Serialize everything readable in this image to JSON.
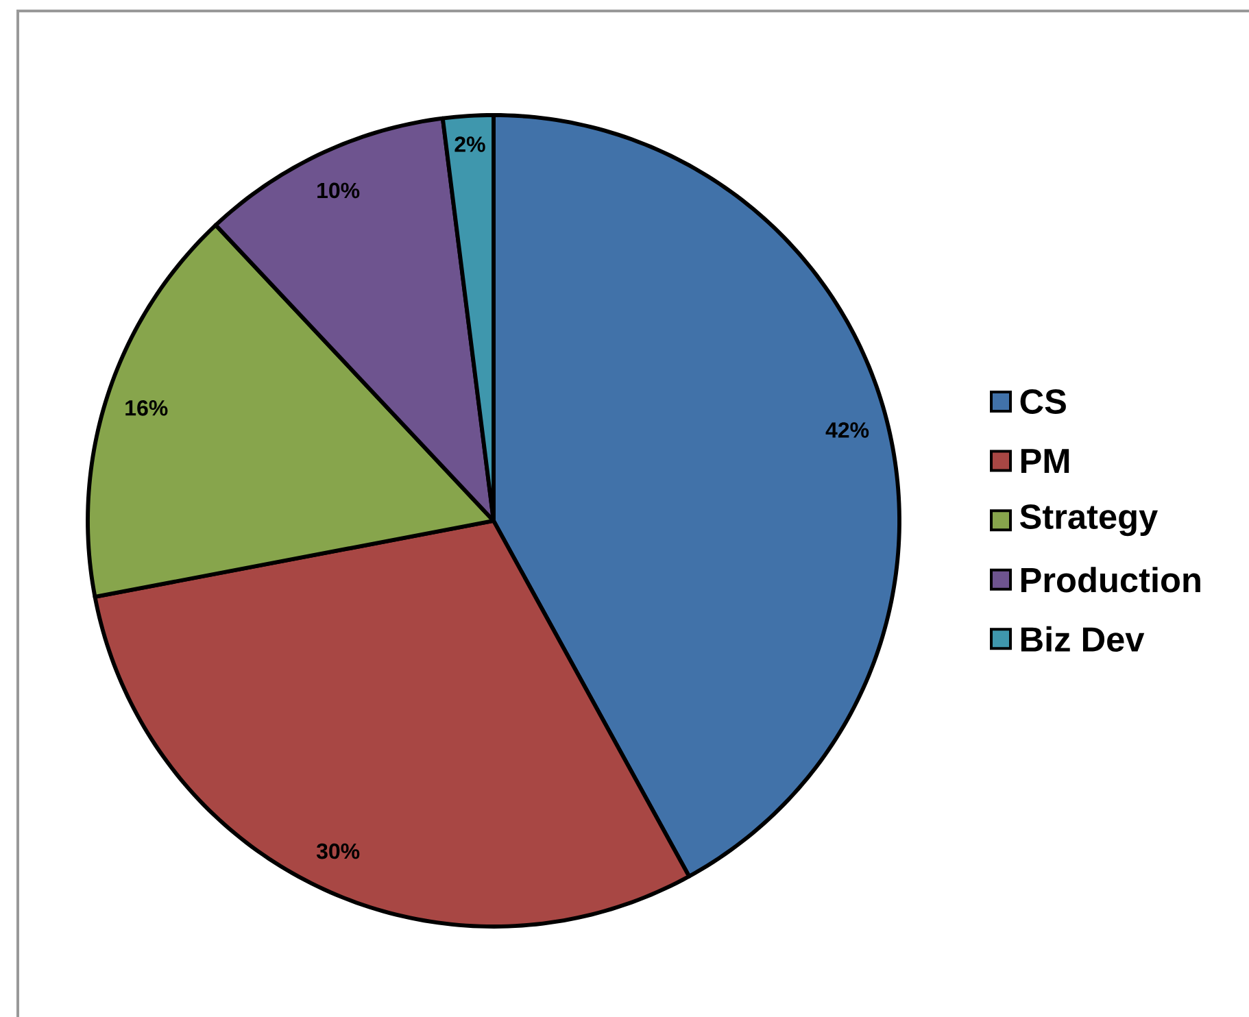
{
  "chart_data": {
    "type": "pie",
    "categories": [
      "CS",
      "PM",
      "Strategy",
      "Production",
      "Biz Dev"
    ],
    "values": [
      42,
      30,
      16,
      10,
      2
    ],
    "colors": [
      "#4172a9",
      "#a84744",
      "#87a54c",
      "#6e548f",
      "#3f97ad"
    ],
    "value_labels": [
      "42%",
      "30%",
      "16%",
      "10%",
      "2%"
    ],
    "legend": "right"
  }
}
